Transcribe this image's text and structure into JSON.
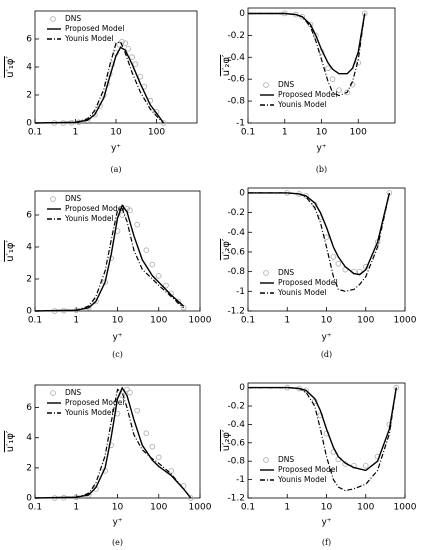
{
  "chart_data": [
    {
      "type": "line",
      "caption": "(a)",
      "xlabel": "y⁺",
      "ylabel": "u′₁φ′",
      "xscale": "log",
      "legend": "upper left",
      "xlim": [
        0.1,
        1000
      ],
      "xticks": [
        0.1,
        1,
        10,
        100
      ],
      "ylim": [
        0,
        8
      ],
      "yticks": [
        0,
        2,
        4,
        6
      ],
      "series": [
        {
          "name": "DNS",
          "color": "#aaaaaa",
          "style": "marker",
          "x": [
            0.3,
            0.5,
            0.8,
            1.2,
            2,
            3,
            4,
            5,
            6,
            7,
            8,
            10,
            12,
            14,
            17,
            20,
            25,
            30,
            40,
            50,
            70,
            100,
            150
          ],
          "values": [
            0,
            0,
            0.02,
            0.05,
            0.2,
            0.6,
            1.2,
            2.0,
            2.8,
            3.5,
            4.2,
            5.0,
            5.6,
            5.8,
            5.7,
            5.3,
            4.7,
            4.2,
            3.3,
            2.6,
            1.6,
            0.8,
            0
          ]
        },
        {
          "name": "Proposed Model",
          "color": "#000000",
          "style": "solid",
          "x": [
            0.1,
            1,
            2,
            3,
            5,
            7,
            10,
            13,
            17,
            25,
            40,
            70,
            100,
            150
          ],
          "values": [
            0,
            0.05,
            0.2,
            0.6,
            1.8,
            3.3,
            4.8,
            5.4,
            5.2,
            4.2,
            2.8,
            1.3,
            0.7,
            0
          ]
        },
        {
          "name": "Younis Model",
          "color": "#000000",
          "style": "dash-dot",
          "x": [
            0.1,
            1,
            2,
            3,
            5,
            7,
            10,
            13,
            17,
            25,
            40,
            70,
            100,
            150
          ],
          "values": [
            0,
            0.05,
            0.3,
            0.9,
            2.4,
            4.1,
            5.7,
            5.8,
            5.0,
            3.6,
            2.2,
            1.0,
            0.5,
            0
          ]
        }
      ]
    },
    {
      "type": "line",
      "caption": "(b)",
      "xlabel": "y⁺",
      "ylabel": "u′₂φ′",
      "xscale": "log",
      "legend": "lower left",
      "xlim": [
        0.1,
        1000
      ],
      "xticks": [
        0.1,
        1,
        10,
        100
      ],
      "ylim": [
        -1,
        0.05
      ],
      "yticks": [
        -1,
        -0.8,
        -0.6,
        -0.4,
        -0.2,
        0
      ],
      "series": [
        {
          "name": "DNS",
          "color": "#aaaaaa",
          "style": "marker",
          "x": [
            1,
            2,
            3,
            5,
            7,
            10,
            15,
            20,
            30,
            50,
            70,
            100,
            150
          ],
          "values": [
            0,
            -0.01,
            -0.03,
            -0.1,
            -0.2,
            -0.35,
            -0.5,
            -0.6,
            -0.7,
            -0.72,
            -0.65,
            -0.45,
            0
          ]
        },
        {
          "name": "Proposed Model",
          "color": "#000000",
          "style": "solid",
          "x": [
            0.1,
            1,
            2,
            3,
            5,
            7,
            10,
            15,
            20,
            30,
            50,
            70,
            100,
            150
          ],
          "values": [
            0,
            0,
            -0.01,
            -0.03,
            -0.1,
            -0.2,
            -0.33,
            -0.45,
            -0.51,
            -0.55,
            -0.55,
            -0.5,
            -0.35,
            0
          ]
        },
        {
          "name": "Younis Model",
          "color": "#000000",
          "style": "dash-dot",
          "x": [
            0.1,
            1,
            2,
            3,
            5,
            7,
            10,
            15,
            20,
            30,
            50,
            70,
            100,
            150
          ],
          "values": [
            0,
            0,
            -0.01,
            -0.03,
            -0.12,
            -0.25,
            -0.42,
            -0.62,
            -0.72,
            -0.75,
            -0.72,
            -0.62,
            -0.42,
            0
          ]
        }
      ]
    },
    {
      "type": "line",
      "caption": "(c)",
      "xlabel": "y⁺",
      "ylabel": "u′₁φ′",
      "xscale": "log",
      "legend": "upper left",
      "xlim": [
        0.1,
        1000
      ],
      "xticks": [
        0.1,
        1,
        10,
        100,
        1000
      ],
      "ylim": [
        0,
        7.5
      ],
      "yticks": [
        0,
        2,
        4,
        6
      ],
      "series": [
        {
          "name": "DNS",
          "color": "#aaaaaa",
          "style": "marker",
          "x": [
            0.3,
            0.5,
            1,
            2,
            3,
            5,
            7,
            10,
            13,
            17,
            20,
            30,
            50,
            70,
            100,
            150,
            200,
            300,
            400
          ],
          "values": [
            0,
            0.02,
            0.05,
            0.2,
            0.6,
            1.8,
            3.3,
            5.0,
            6.0,
            6.4,
            6.3,
            5.4,
            3.8,
            2.9,
            2.2,
            1.6,
            1.1,
            0.6,
            0.2
          ]
        },
        {
          "name": "Proposed Model",
          "color": "#000000",
          "style": "solid",
          "x": [
            0.1,
            1,
            2,
            3,
            5,
            7,
            10,
            13,
            17,
            25,
            40,
            70,
            100,
            200,
            400
          ],
          "values": [
            0,
            0.05,
            0.2,
            0.6,
            1.8,
            3.5,
            5.8,
            6.6,
            6.2,
            4.7,
            3.2,
            2.2,
            1.8,
            1.0,
            0.3
          ]
        },
        {
          "name": "Younis Model",
          "color": "#000000",
          "style": "dash-dot",
          "x": [
            0.1,
            1,
            2,
            3,
            5,
            7,
            10,
            13,
            17,
            25,
            40,
            70,
            100,
            200,
            400
          ],
          "values": [
            0,
            0.05,
            0.3,
            0.9,
            2.5,
            4.4,
            6.3,
            6.4,
            5.6,
            3.8,
            2.6,
            2.0,
            1.6,
            0.9,
            0.2
          ]
        }
      ]
    },
    {
      "type": "line",
      "caption": "(d)",
      "xlabel": "y⁺",
      "ylabel": "u′₂φ′",
      "xscale": "log",
      "legend": "lower left",
      "xlim": [
        0.1,
        1000
      ],
      "xticks": [
        0.1,
        1,
        10,
        100,
        1000
      ],
      "ylim": [
        -1.2,
        0.05
      ],
      "yticks": [
        -1.2,
        -1,
        -0.8,
        -0.6,
        -0.4,
        -0.2,
        0
      ],
      "series": [
        {
          "name": "DNS",
          "color": "#aaaaaa",
          "style": "marker",
          "x": [
            1,
            2,
            3,
            5,
            7,
            10,
            15,
            20,
            30,
            50,
            70,
            100,
            200,
            400
          ],
          "values": [
            0,
            -0.01,
            -0.03,
            -0.12,
            -0.25,
            -0.45,
            -0.65,
            -0.72,
            -0.78,
            -0.8,
            -0.8,
            -0.75,
            -0.5,
            0
          ]
        },
        {
          "name": "Proposed Model",
          "color": "#000000",
          "style": "solid",
          "x": [
            0.1,
            1,
            2,
            3,
            5,
            7,
            10,
            15,
            20,
            30,
            50,
            70,
            100,
            200,
            400
          ],
          "values": [
            0,
            0,
            -0.01,
            -0.03,
            -0.1,
            -0.2,
            -0.35,
            -0.55,
            -0.65,
            -0.75,
            -0.82,
            -0.83,
            -0.78,
            -0.5,
            0
          ]
        },
        {
          "name": "Younis Model",
          "color": "#000000",
          "style": "dash-dot",
          "x": [
            0.1,
            1,
            2,
            3,
            5,
            7,
            10,
            15,
            20,
            30,
            50,
            70,
            100,
            200,
            400
          ],
          "values": [
            0,
            0,
            -0.01,
            -0.04,
            -0.15,
            -0.3,
            -0.55,
            -0.85,
            -0.98,
            -1.0,
            -0.98,
            -0.93,
            -0.85,
            -0.55,
            0
          ]
        }
      ]
    },
    {
      "type": "line",
      "caption": "(e)",
      "xlabel": "y⁺",
      "ylabel": "u′₁φ′",
      "xscale": "log",
      "legend": "upper left",
      "xlim": [
        0.1,
        1000
      ],
      "xticks": [
        0.1,
        1,
        10,
        100,
        1000
      ],
      "ylim": [
        0,
        7.5
      ],
      "yticks": [
        0,
        2,
        4,
        6
      ],
      "series": [
        {
          "name": "DNS",
          "color": "#aaaaaa",
          "style": "marker",
          "x": [
            0.3,
            0.5,
            1,
            2,
            3,
            5,
            7,
            10,
            13,
            17,
            20,
            30,
            50,
            70,
            100,
            200,
            400,
            600
          ],
          "values": [
            0,
            0.02,
            0.05,
            0.2,
            0.6,
            1.8,
            3.5,
            5.6,
            6.8,
            7.2,
            7.0,
            5.8,
            4.3,
            3.4,
            2.7,
            1.8,
            0.8,
            0
          ]
        },
        {
          "name": "Proposed Model",
          "color": "#000000",
          "style": "solid",
          "x": [
            0.1,
            1,
            2,
            3,
            5,
            7,
            10,
            13,
            17,
            25,
            40,
            70,
            100,
            200,
            400,
            600
          ],
          "values": [
            0,
            0.05,
            0.2,
            0.7,
            2.0,
            4.0,
            6.6,
            7.3,
            6.8,
            5.2,
            3.5,
            2.5,
            2.1,
            1.5,
            0.6,
            0
          ]
        },
        {
          "name": "Younis Model",
          "color": "#000000",
          "style": "dash-dot",
          "x": [
            0.1,
            1,
            2,
            3,
            5,
            7,
            10,
            13,
            17,
            25,
            40,
            70,
            100,
            200,
            400,
            600
          ],
          "values": [
            0,
            0.05,
            0.3,
            1.0,
            2.8,
            5.0,
            7.2,
            7.0,
            6.0,
            4.2,
            3.2,
            2.6,
            2.3,
            1.6,
            0.6,
            0
          ]
        }
      ]
    },
    {
      "type": "line",
      "caption": "(f)",
      "xlabel": "y⁺",
      "ylabel": "u′₂φ′",
      "xscale": "log",
      "legend": "lower left",
      "xlim": [
        0.1,
        1000
      ],
      "xticks": [
        0.1,
        1,
        10,
        100,
        1000
      ],
      "ylim": [
        -1.2,
        0.05
      ],
      "yticks": [
        -1.2,
        -1,
        -0.8,
        -0.6,
        -0.4,
        -0.2,
        0
      ],
      "series": [
        {
          "name": "DNS",
          "color": "#aaaaaa",
          "style": "marker",
          "x": [
            1,
            2,
            3,
            5,
            7,
            10,
            15,
            20,
            30,
            50,
            100,
            200,
            400,
            600
          ],
          "values": [
            0,
            -0.01,
            -0.03,
            -0.15,
            -0.3,
            -0.5,
            -0.7,
            -0.78,
            -0.83,
            -0.85,
            -0.85,
            -0.75,
            -0.4,
            0
          ]
        },
        {
          "name": "Proposed Model",
          "color": "#000000",
          "style": "solid",
          "x": [
            0.1,
            1,
            2,
            3,
            5,
            7,
            10,
            15,
            20,
            30,
            50,
            100,
            200,
            400,
            600
          ],
          "values": [
            0,
            0,
            -0.01,
            -0.03,
            -0.12,
            -0.25,
            -0.45,
            -0.65,
            -0.75,
            -0.82,
            -0.87,
            -0.9,
            -0.8,
            -0.45,
            0
          ]
        },
        {
          "name": "Younis Model",
          "color": "#000000",
          "style": "dash-dot",
          "x": [
            0.1,
            1,
            2,
            3,
            5,
            7,
            10,
            15,
            20,
            30,
            50,
            100,
            200,
            400,
            600
          ],
          "values": [
            0,
            0,
            -0.01,
            -0.05,
            -0.2,
            -0.45,
            -0.75,
            -1.0,
            -1.08,
            -1.12,
            -1.1,
            -1.05,
            -0.9,
            -0.5,
            0
          ]
        }
      ]
    }
  ]
}
